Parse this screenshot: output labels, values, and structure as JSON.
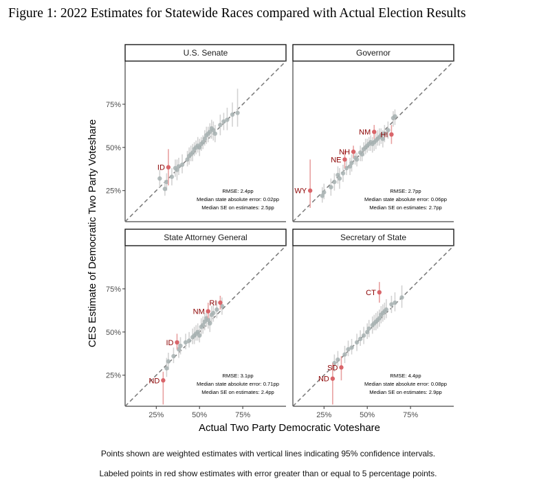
{
  "figure_title": "Figure 1: 2022 Estimates for Statewide Races compared with Actual Election Results",
  "captions": [
    "Points shown are weighted estimates with vertical lines indicating 95% confidence intervals.",
    "Labeled points in red show estimates with error greater than or equal to 5 percentage points."
  ],
  "colors": {
    "gray_point": "#a7b1b1",
    "gray_ci": "#d2d2d2",
    "red_point": "#d9656a",
    "red_ci": "#e8a0a0",
    "label": "#8b0000",
    "diagonal": "#777777"
  },
  "chart_data": {
    "type": "scatter",
    "xlabel": "Actual Two Party Democratic Voteshare",
    "ylabel": "CES Estimate of Democratic Two Party Voteshare",
    "x_ticks": [
      "25%",
      "50%",
      "75%"
    ],
    "y_ticks": [
      "25%",
      "50%",
      "75%"
    ],
    "xlim": [
      0.07,
      1.0
    ],
    "ylim": [
      0.07,
      1.0
    ],
    "grid": false,
    "reference_line": "y = x (dashed)",
    "panels": [
      {
        "title": "U.S. Senate",
        "stats": [
          "RMSE: 2.4pp",
          "Median state absolute error: 0.02pp",
          "Median SE on estimates: 2.5pp"
        ],
        "labeled_points": [
          {
            "label": "ID",
            "x": 0.32,
            "y": 0.385,
            "lo": 0.28,
            "hi": 0.49
          }
        ],
        "points": [
          [
            0.27,
            0.32,
            0.27,
            0.37
          ],
          [
            0.3,
            0.26,
            0.22,
            0.31
          ],
          [
            0.31,
            0.3,
            0.25,
            0.35
          ],
          [
            0.34,
            0.33,
            0.28,
            0.38
          ],
          [
            0.36,
            0.38,
            0.33,
            0.43
          ],
          [
            0.37,
            0.37,
            0.31,
            0.43
          ],
          [
            0.38,
            0.39,
            0.34,
            0.44
          ],
          [
            0.4,
            0.4,
            0.35,
            0.46
          ],
          [
            0.43,
            0.43,
            0.39,
            0.48
          ],
          [
            0.44,
            0.45,
            0.4,
            0.5
          ],
          [
            0.45,
            0.46,
            0.42,
            0.51
          ],
          [
            0.46,
            0.47,
            0.42,
            0.52
          ],
          [
            0.47,
            0.49,
            0.45,
            0.53
          ],
          [
            0.48,
            0.5,
            0.46,
            0.54
          ],
          [
            0.49,
            0.51,
            0.47,
            0.56
          ],
          [
            0.5,
            0.5,
            0.45,
            0.55
          ],
          [
            0.51,
            0.52,
            0.48,
            0.56
          ],
          [
            0.52,
            0.53,
            0.49,
            0.57
          ],
          [
            0.53,
            0.55,
            0.51,
            0.6
          ],
          [
            0.54,
            0.57,
            0.52,
            0.62
          ],
          [
            0.55,
            0.58,
            0.53,
            0.62
          ],
          [
            0.56,
            0.59,
            0.55,
            0.64
          ],
          [
            0.57,
            0.61,
            0.55,
            0.66
          ],
          [
            0.58,
            0.6,
            0.54,
            0.65
          ],
          [
            0.59,
            0.58,
            0.53,
            0.63
          ],
          [
            0.62,
            0.63,
            0.57,
            0.69
          ],
          [
            0.64,
            0.65,
            0.6,
            0.7
          ],
          [
            0.66,
            0.66,
            0.6,
            0.73
          ],
          [
            0.69,
            0.69,
            0.62,
            0.76
          ],
          [
            0.72,
            0.7,
            0.62,
            0.84
          ]
        ]
      },
      {
        "title": "Governor",
        "stats": [
          "RMSE: 2.7pp",
          "Median state absolute error: 0.06pp",
          "Median SE on estimates: 2.7pp"
        ],
        "labeled_points": [
          {
            "label": "WY",
            "x": 0.17,
            "y": 0.25,
            "lo": 0.15,
            "hi": 0.43
          },
          {
            "label": "NE",
            "x": 0.37,
            "y": 0.43,
            "lo": 0.38,
            "hi": 0.48
          },
          {
            "label": "NH",
            "x": 0.42,
            "y": 0.475,
            "lo": 0.44,
            "hi": 0.51
          },
          {
            "label": "NM",
            "x": 0.54,
            "y": 0.59,
            "lo": 0.55,
            "hi": 0.63
          },
          {
            "label": "HI",
            "x": 0.64,
            "y": 0.575,
            "lo": 0.52,
            "hi": 0.63
          }
        ],
        "points": [
          [
            0.24,
            0.22,
            0.18,
            0.27
          ],
          [
            0.25,
            0.24,
            0.2,
            0.29
          ],
          [
            0.29,
            0.27,
            0.22,
            0.32
          ],
          [
            0.31,
            0.3,
            0.25,
            0.35
          ],
          [
            0.33,
            0.34,
            0.29,
            0.39
          ],
          [
            0.34,
            0.32,
            0.26,
            0.38
          ],
          [
            0.36,
            0.35,
            0.3,
            0.4
          ],
          [
            0.38,
            0.38,
            0.34,
            0.43
          ],
          [
            0.4,
            0.39,
            0.34,
            0.44
          ],
          [
            0.41,
            0.41,
            0.36,
            0.46
          ],
          [
            0.43,
            0.44,
            0.4,
            0.48
          ],
          [
            0.44,
            0.43,
            0.39,
            0.47
          ],
          [
            0.46,
            0.47,
            0.42,
            0.51
          ],
          [
            0.47,
            0.46,
            0.42,
            0.5
          ],
          [
            0.48,
            0.49,
            0.45,
            0.53
          ],
          [
            0.49,
            0.5,
            0.46,
            0.55
          ],
          [
            0.5,
            0.51,
            0.47,
            0.55
          ],
          [
            0.51,
            0.52,
            0.48,
            0.56
          ],
          [
            0.52,
            0.53,
            0.48,
            0.57
          ],
          [
            0.53,
            0.52,
            0.47,
            0.56
          ],
          [
            0.54,
            0.53,
            0.48,
            0.58
          ],
          [
            0.55,
            0.54,
            0.49,
            0.59
          ],
          [
            0.56,
            0.55,
            0.51,
            0.6
          ],
          [
            0.57,
            0.56,
            0.51,
            0.61
          ],
          [
            0.58,
            0.57,
            0.52,
            0.61
          ],
          [
            0.59,
            0.55,
            0.5,
            0.6
          ],
          [
            0.6,
            0.58,
            0.53,
            0.63
          ],
          [
            0.62,
            0.6,
            0.55,
            0.65
          ],
          [
            0.65,
            0.67,
            0.62,
            0.71
          ],
          [
            0.66,
            0.68,
            0.63,
            0.72
          ]
        ]
      },
      {
        "title": "State Attorney General",
        "stats": [
          "RMSE: 3.1pp",
          "Median state absolute error: 0.71pp",
          "Median SE on estimates: 2.4pp"
        ],
        "labeled_points": [
          {
            "label": "ND",
            "x": 0.29,
            "y": 0.22,
            "lo": 0.08,
            "hi": 0.27
          },
          {
            "label": "ID",
            "x": 0.37,
            "y": 0.44,
            "lo": 0.4,
            "hi": 0.49
          },
          {
            "label": "NM",
            "x": 0.55,
            "y": 0.62,
            "lo": 0.58,
            "hi": 0.67
          },
          {
            "label": "RI",
            "x": 0.62,
            "y": 0.67,
            "lo": 0.63,
            "hi": 0.71
          }
        ],
        "points": [
          [
            0.31,
            0.29,
            0.24,
            0.35
          ],
          [
            0.32,
            0.33,
            0.28,
            0.38
          ],
          [
            0.35,
            0.36,
            0.32,
            0.41
          ],
          [
            0.38,
            0.4,
            0.35,
            0.45
          ],
          [
            0.39,
            0.42,
            0.37,
            0.47
          ],
          [
            0.42,
            0.44,
            0.4,
            0.49
          ],
          [
            0.44,
            0.45,
            0.41,
            0.5
          ],
          [
            0.46,
            0.47,
            0.43,
            0.52
          ],
          [
            0.47,
            0.48,
            0.43,
            0.53
          ],
          [
            0.48,
            0.49,
            0.45,
            0.54
          ],
          [
            0.49,
            0.5,
            0.45,
            0.55
          ],
          [
            0.5,
            0.48,
            0.44,
            0.52
          ],
          [
            0.51,
            0.53,
            0.48,
            0.58
          ],
          [
            0.52,
            0.54,
            0.49,
            0.59
          ],
          [
            0.53,
            0.56,
            0.51,
            0.61
          ],
          [
            0.54,
            0.58,
            0.53,
            0.63
          ],
          [
            0.55,
            0.57,
            0.52,
            0.62
          ],
          [
            0.56,
            0.55,
            0.5,
            0.6
          ],
          [
            0.57,
            0.6,
            0.55,
            0.65
          ],
          [
            0.58,
            0.61,
            0.56,
            0.66
          ],
          [
            0.6,
            0.63,
            0.58,
            0.68
          ],
          [
            0.63,
            0.65,
            0.6,
            0.7
          ]
        ]
      },
      {
        "title": "Secretary of State",
        "stats": [
          "RMSE: 4.4pp",
          "Median state absolute error: 0.08pp",
          "Median SE on estimates: 2.9pp"
        ],
        "labeled_points": [
          {
            "label": "ND",
            "x": 0.3,
            "y": 0.23,
            "lo": 0.08,
            "hi": 0.32
          },
          {
            "label": "SD",
            "x": 0.35,
            "y": 0.295,
            "lo": 0.22,
            "hi": 0.36
          },
          {
            "label": "CT",
            "x": 0.57,
            "y": 0.73,
            "lo": 0.67,
            "hi": 0.79
          }
        ],
        "points": [
          [
            0.31,
            0.32,
            0.27,
            0.37
          ],
          [
            0.33,
            0.34,
            0.3,
            0.39
          ],
          [
            0.37,
            0.37,
            0.32,
            0.42
          ],
          [
            0.39,
            0.4,
            0.36,
            0.45
          ],
          [
            0.41,
            0.41,
            0.37,
            0.46
          ],
          [
            0.44,
            0.44,
            0.39,
            0.49
          ],
          [
            0.46,
            0.46,
            0.42,
            0.51
          ],
          [
            0.48,
            0.48,
            0.43,
            0.53
          ],
          [
            0.5,
            0.5,
            0.46,
            0.55
          ],
          [
            0.51,
            0.52,
            0.47,
            0.57
          ],
          [
            0.53,
            0.54,
            0.49,
            0.59
          ],
          [
            0.54,
            0.55,
            0.51,
            0.6
          ],
          [
            0.55,
            0.56,
            0.51,
            0.61
          ],
          [
            0.56,
            0.57,
            0.52,
            0.62
          ],
          [
            0.57,
            0.58,
            0.53,
            0.63
          ],
          [
            0.58,
            0.6,
            0.55,
            0.65
          ],
          [
            0.59,
            0.61,
            0.56,
            0.66
          ],
          [
            0.6,
            0.62,
            0.57,
            0.67
          ],
          [
            0.61,
            0.63,
            0.58,
            0.69
          ],
          [
            0.64,
            0.66,
            0.61,
            0.71
          ],
          [
            0.66,
            0.67,
            0.62,
            0.73
          ],
          [
            0.7,
            0.7,
            0.64,
            0.77
          ]
        ]
      }
    ]
  }
}
